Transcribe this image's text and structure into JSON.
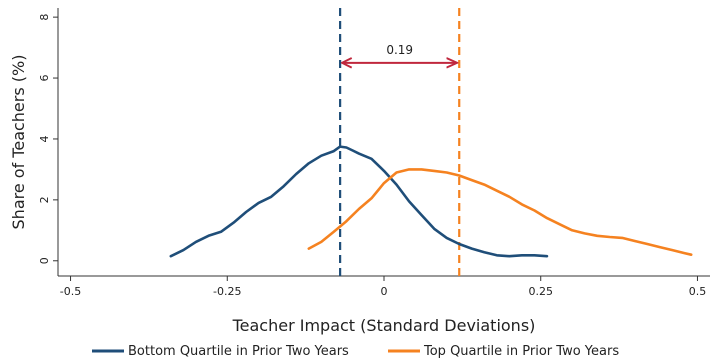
{
  "chart_data": {
    "type": "line",
    "title": "",
    "xlabel": "Teacher Impact (Standard Deviations)",
    "ylabel": "Share of Teachers (%)",
    "xlim": [
      -0.52,
      0.52
    ],
    "ylim": [
      -0.5,
      8.3
    ],
    "x_ticks": [
      -0.5,
      -0.25,
      0,
      0.25,
      0.5
    ],
    "x_tick_labels": [
      "-0.5",
      "-0.25",
      "0",
      "0.25",
      "0.5"
    ],
    "y_ticks": [
      0,
      2,
      4,
      6,
      8
    ],
    "y_tick_labels": [
      "0",
      "2",
      "4",
      "6",
      "8"
    ],
    "grid": false,
    "legend_position": "bottom",
    "series": [
      {
        "name": "Bottom Quartile in Prior Two Years",
        "color": "#1f4e79",
        "points": [
          [
            -0.34,
            0.15
          ],
          [
            -0.32,
            0.35
          ],
          [
            -0.3,
            0.62
          ],
          [
            -0.28,
            0.82
          ],
          [
            -0.26,
            0.95
          ],
          [
            -0.24,
            1.25
          ],
          [
            -0.22,
            1.6
          ],
          [
            -0.2,
            1.9
          ],
          [
            -0.18,
            2.1
          ],
          [
            -0.16,
            2.45
          ],
          [
            -0.14,
            2.85
          ],
          [
            -0.12,
            3.2
          ],
          [
            -0.1,
            3.45
          ],
          [
            -0.08,
            3.6
          ],
          [
            -0.07,
            3.75
          ],
          [
            -0.06,
            3.72
          ],
          [
            -0.05,
            3.62
          ],
          [
            -0.04,
            3.52
          ],
          [
            -0.02,
            3.35
          ],
          [
            0.0,
            2.95
          ],
          [
            0.02,
            2.5
          ],
          [
            0.04,
            1.95
          ],
          [
            0.06,
            1.5
          ],
          [
            0.08,
            1.05
          ],
          [
            0.1,
            0.75
          ],
          [
            0.12,
            0.55
          ],
          [
            0.14,
            0.4
          ],
          [
            0.16,
            0.28
          ],
          [
            0.18,
            0.18
          ],
          [
            0.2,
            0.15
          ],
          [
            0.22,
            0.18
          ],
          [
            0.24,
            0.18
          ],
          [
            0.26,
            0.15
          ]
        ]
      },
      {
        "name": "Top Quartile in Prior Two Years",
        "color": "#f58220",
        "points": [
          [
            -0.12,
            0.4
          ],
          [
            -0.1,
            0.62
          ],
          [
            -0.08,
            0.95
          ],
          [
            -0.06,
            1.3
          ],
          [
            -0.04,
            1.7
          ],
          [
            -0.02,
            2.05
          ],
          [
            0.0,
            2.55
          ],
          [
            0.02,
            2.9
          ],
          [
            0.04,
            3.0
          ],
          [
            0.06,
            3.0
          ],
          [
            0.08,
            2.95
          ],
          [
            0.1,
            2.9
          ],
          [
            0.12,
            2.8
          ],
          [
            0.14,
            2.65
          ],
          [
            0.16,
            2.5
          ],
          [
            0.18,
            2.3
          ],
          [
            0.2,
            2.1
          ],
          [
            0.22,
            1.85
          ],
          [
            0.24,
            1.65
          ],
          [
            0.26,
            1.4
          ],
          [
            0.28,
            1.2
          ],
          [
            0.3,
            1.0
          ],
          [
            0.32,
            0.9
          ],
          [
            0.34,
            0.82
          ],
          [
            0.36,
            0.78
          ],
          [
            0.38,
            0.75
          ],
          [
            0.4,
            0.65
          ],
          [
            0.42,
            0.55
          ],
          [
            0.44,
            0.45
          ],
          [
            0.46,
            0.35
          ],
          [
            0.48,
            0.25
          ],
          [
            0.49,
            0.2
          ]
        ]
      }
    ],
    "vlines": [
      {
        "x": -0.07,
        "color": "#1f4e79",
        "style": "dashed"
      },
      {
        "x": 0.12,
        "color": "#f58220",
        "style": "dashed"
      }
    ],
    "annotation": {
      "label": "0.19",
      "x_from": -0.07,
      "x_to": 0.12,
      "y": 6.5,
      "color": "#c0273d"
    }
  }
}
